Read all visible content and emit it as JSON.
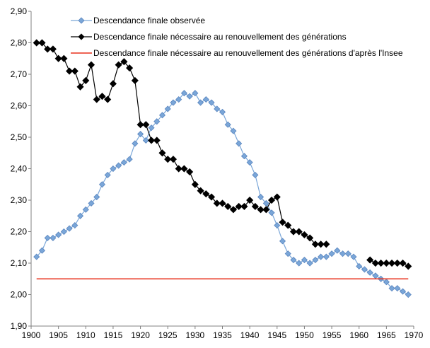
{
  "chart_data": {
    "type": "line",
    "title": "",
    "xlabel": "",
    "ylabel": "",
    "xlim": [
      1900,
      1970
    ],
    "ylim": [
      1.9,
      2.9
    ],
    "x_ticks": [
      1900,
      1905,
      1910,
      1915,
      1920,
      1925,
      1930,
      1935,
      1940,
      1945,
      1950,
      1955,
      1960,
      1965,
      1970
    ],
    "y_ticks": [
      1.9,
      2.0,
      2.1,
      2.2,
      2.3,
      2.4,
      2.5,
      2.6,
      2.7,
      2.8,
      2.9
    ],
    "y_tick_labels": [
      "1,90",
      "2,00",
      "2,10",
      "2,20",
      "2,30",
      "2,40",
      "2,50",
      "2,60",
      "2,70",
      "2,80",
      "2,90"
    ],
    "grid": false,
    "legend_position": "top",
    "series": [
      {
        "name": "Descendance finale observée",
        "color": "#7aa6d8",
        "marker": "diamond",
        "x": [
          1901,
          1902,
          1903,
          1904,
          1905,
          1906,
          1907,
          1908,
          1909,
          1910,
          1911,
          1912,
          1913,
          1914,
          1915,
          1916,
          1917,
          1918,
          1919,
          1920,
          1921,
          1922,
          1923,
          1924,
          1925,
          1926,
          1927,
          1928,
          1929,
          1930,
          1931,
          1932,
          1933,
          1934,
          1935,
          1936,
          1937,
          1938,
          1939,
          1940,
          1941,
          1942,
          1943,
          1944,
          1945,
          1946,
          1947,
          1948,
          1949,
          1950,
          1951,
          1952,
          1953,
          1954,
          1955,
          1956,
          1957,
          1958,
          1959,
          1960,
          1961,
          1962,
          1963,
          1964,
          1965,
          1966,
          1967,
          1968,
          1969
        ],
        "y": [
          2.12,
          2.14,
          2.18,
          2.18,
          2.19,
          2.2,
          2.21,
          2.22,
          2.25,
          2.27,
          2.29,
          2.31,
          2.35,
          2.38,
          2.4,
          2.41,
          2.42,
          2.43,
          2.48,
          2.51,
          2.49,
          2.53,
          2.55,
          2.57,
          2.59,
          2.61,
          2.62,
          2.64,
          2.63,
          2.64,
          2.61,
          2.62,
          2.61,
          2.59,
          2.58,
          2.54,
          2.52,
          2.48,
          2.44,
          2.42,
          2.38,
          2.31,
          2.29,
          2.26,
          2.22,
          2.17,
          2.13,
          2.11,
          2.1,
          2.11,
          2.1,
          2.11,
          2.12,
          2.12,
          2.13,
          2.14,
          2.13,
          2.13,
          2.12,
          2.09,
          2.08,
          2.07,
          2.06,
          2.05,
          2.04,
          2.02,
          2.02,
          2.01,
          2.0
        ]
      },
      {
        "name": "Descendance finale nécessaire au renouvellement des générations",
        "color": "#000000",
        "marker": "diamond",
        "segments": [
          {
            "x": [
              1901,
              1902,
              1903,
              1904,
              1905,
              1906,
              1907,
              1908,
              1909,
              1910,
              1911,
              1912,
              1913,
              1914,
              1915,
              1916,
              1917,
              1918,
              1919,
              1920,
              1921,
              1922,
              1923,
              1924,
              1925,
              1926,
              1927,
              1928,
              1929,
              1930,
              1931,
              1932,
              1933,
              1934,
              1935,
              1936,
              1937,
              1938,
              1939,
              1940,
              1941,
              1942,
              1943,
              1944,
              1945,
              1946,
              1947,
              1948,
              1949,
              1950,
              1951,
              1952,
              1953,
              1954
            ],
            "y": [
              2.8,
              2.8,
              2.78,
              2.78,
              2.75,
              2.75,
              2.71,
              2.71,
              2.66,
              2.68,
              2.73,
              2.62,
              2.63,
              2.62,
              2.67,
              2.73,
              2.74,
              2.72,
              2.68,
              2.54,
              2.54,
              2.49,
              2.49,
              2.45,
              2.43,
              2.43,
              2.4,
              2.4,
              2.39,
              2.35,
              2.33,
              2.32,
              2.31,
              2.29,
              2.29,
              2.28,
              2.27,
              2.28,
              2.28,
              2.3,
              2.28,
              2.27,
              2.27,
              2.3,
              2.31,
              2.23,
              2.22,
              2.2,
              2.2,
              2.19,
              2.18,
              2.16,
              2.16,
              2.16
            ]
          },
          {
            "x": [
              1962,
              1963,
              1964,
              1965,
              1966,
              1967,
              1968,
              1969
            ],
            "y": [
              2.11,
              2.1,
              2.1,
              2.1,
              2.1,
              2.1,
              2.1,
              2.09
            ]
          }
        ]
      },
      {
        "name": "Descendance finale nécessaire au renouvellement des générations d'après l'Insee",
        "color": "#e8301c",
        "marker": "none",
        "x": [
          1901,
          1969
        ],
        "y": [
          2.05,
          2.05
        ]
      }
    ]
  }
}
